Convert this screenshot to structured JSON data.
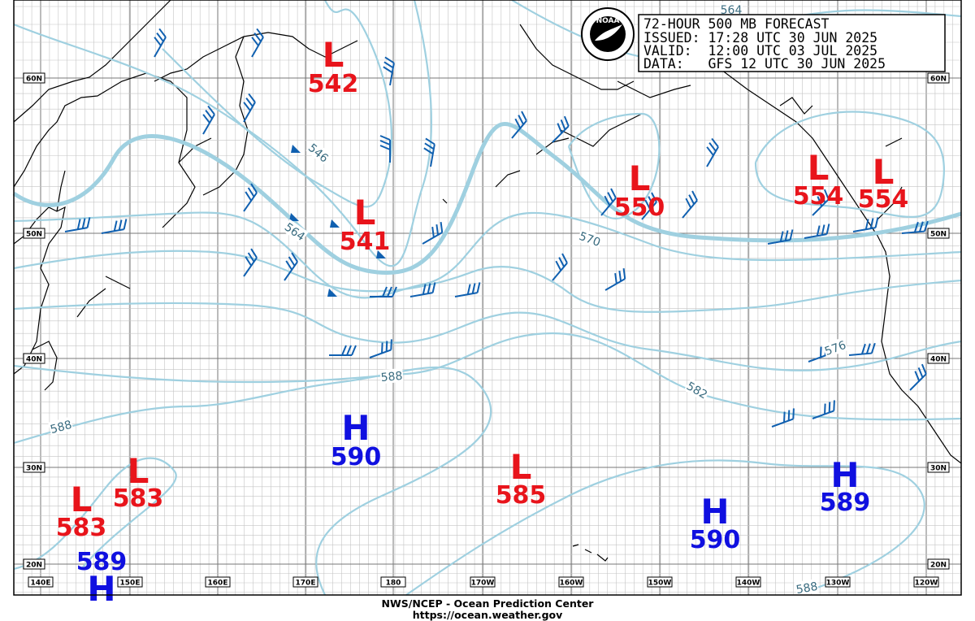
{
  "title_box": {
    "lines": [
      "72-HOUR 500 MB FORECAST",
      "ISSUED: 17:28 UTC 30 JUN 2025",
      "VALID:  12:00 UTC 03 JUL 2025",
      "DATA:   GFS 12 UTC 30 JUN 2025"
    ]
  },
  "logo": "NOAA",
  "centers": [
    {
      "letter": "L",
      "value": 542,
      "color": "#e8141b"
    },
    {
      "letter": "L",
      "value": 541,
      "color": "#e8141b"
    },
    {
      "letter": "L",
      "value": 550,
      "color": "#e8141b"
    },
    {
      "letter": "L",
      "value": 554,
      "color": "#e8141b"
    },
    {
      "letter": "L",
      "value": 554,
      "color": "#e8141b"
    },
    {
      "letter": "L",
      "value": 583,
      "color": "#e8141b"
    },
    {
      "letter": "L",
      "value": 583,
      "color": "#e8141b"
    },
    {
      "letter": "L",
      "value": 585,
      "color": "#e8141b"
    },
    {
      "letter": "H",
      "value": 590,
      "color": "#1010e0"
    },
    {
      "letter": "H",
      "value": 590,
      "color": "#1010e0"
    },
    {
      "letter": "H",
      "value": 589,
      "color": "#1010e0"
    },
    {
      "value": 589,
      "color": "#1010e0"
    },
    {
      "letter": "H",
      "color": "#1010e0"
    }
  ],
  "contour_labels": [
    564,
    546,
    564,
    570,
    576,
    582,
    588,
    588,
    588
  ],
  "lat_labels": [
    "60N",
    "50N",
    "40N",
    "30N",
    "20N"
  ],
  "lon_labels": [
    "140E",
    "150E",
    "160E",
    "170E",
    "180",
    "170W",
    "160W",
    "150W",
    "140W",
    "130W",
    "120W"
  ],
  "footer": {
    "agency": "NWS/NCEP - Ocean Prediction Center",
    "url": "https://ocean.weather.gov"
  }
}
